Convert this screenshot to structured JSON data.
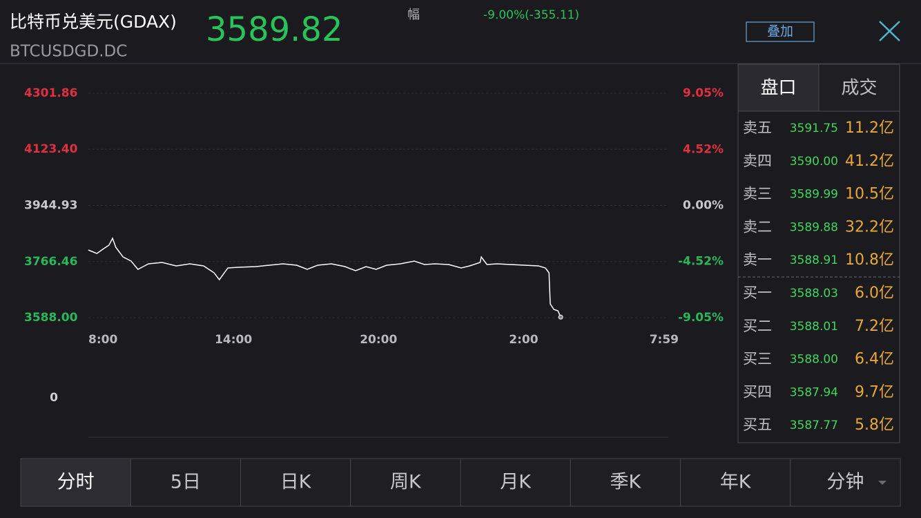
{
  "header": {
    "name": "比特币兑美元(GDAX)",
    "code": "BTCUSDGD.DC",
    "price": "3589.82",
    "change_label": "幅",
    "change": "-9.00%(-355.11)",
    "overlay_button": "叠加"
  },
  "chart_data": {
    "type": "line",
    "color": "#ffffff",
    "x": [
      0,
      21,
      38,
      51,
      60,
      68,
      86,
      106,
      123,
      149,
      183,
      218,
      252,
      286,
      312,
      325,
      346,
      372,
      415,
      449,
      483,
      517,
      543,
      569,
      603,
      637,
      663,
      689,
      714,
      740,
      774,
      809,
      834,
      860,
      894,
      925,
      946,
      972,
      975,
      989,
      1014,
      1048,
      1083,
      1117,
      1134,
      1143,
      1146,
      1155,
      1165,
      1172
    ],
    "values": [
      3803.3,
      3792.3,
      3807.7,
      3818.7,
      3840.6,
      3812.1,
      3781.3,
      3768.2,
      3741.8,
      3759.4,
      3763.8,
      3752.8,
      3759.4,
      3752.8,
      3730.8,
      3708.9,
      3746.2,
      3748.4,
      3750.6,
      3755.0,
      3759.4,
      3755.0,
      3741.8,
      3755.0,
      3759.4,
      3750.6,
      3737.4,
      3750.6,
      3741.8,
      3755.0,
      3759.4,
      3768.2,
      3757.2,
      3759.4,
      3757.2,
      3746.2,
      3752.8,
      3763.8,
      3781.3,
      3757.2,
      3759.4,
      3757.2,
      3755.0,
      3752.8,
      3746.2,
      3730.8,
      3632.0,
      3614.4,
      3610.0,
      3589.82
    ],
    "xlim": [
      0,
      1439
    ],
    "xticks": [
      {
        "value": 0,
        "label": "8:00"
      },
      {
        "value": 360,
        "label": "14:00"
      },
      {
        "value": 720,
        "label": "20:00"
      },
      {
        "value": 1080,
        "label": "2:00"
      },
      {
        "value": 1439,
        "label": "7:59"
      }
    ],
    "ylim": [
      3588.0,
      4301.86
    ],
    "yticks": [
      4301.86,
      {
        "value": 4123.4,
        "label": "4123.40"
      },
      3944.93,
      3766.46,
      {
        "value": 3588.0,
        "label": "3588.00"
      }
    ],
    "y2lim": [
      -9.05,
      9.05
    ],
    "y2ticks": [
      {
        "value": 9.05,
        "label": "9.05%"
      },
      {
        "value": 4.52,
        "label": "4.52%"
      },
      {
        "value": 0,
        "label": "0.00%"
      },
      {
        "value": -4.52,
        "label": "-4.52%"
      },
      {
        "value": -9.05,
        "label": "-9.05%"
      }
    ],
    "grid": true
  },
  "volume": {
    "label": "0"
  },
  "order_book": {
    "tabs": [
      "盘口",
      "成交"
    ],
    "rows": [
      [
        "卖五",
        "3591.75",
        "11.2亿"
      ],
      [
        "卖四",
        "3590.00",
        "41.2亿"
      ],
      [
        "卖三",
        "3589.99",
        "10.5亿"
      ],
      [
        "卖二",
        "3589.88",
        "32.2亿"
      ],
      [
        "卖一",
        "3588.91",
        "10.8亿"
      ],
      [
        "买一",
        "3588.03",
        "6.0亿"
      ],
      [
        "买二",
        "3588.01",
        "7.2亿"
      ],
      [
        "买三",
        "3588.00",
        "6.4亿"
      ],
      [
        "买四",
        "3587.94",
        "9.7亿"
      ],
      [
        "买五",
        "3587.77",
        "5.8亿"
      ]
    ]
  },
  "tabs": [
    "分时",
    "5日",
    "日K",
    "周K",
    "月K",
    "季K",
    "年K",
    "分钟"
  ]
}
